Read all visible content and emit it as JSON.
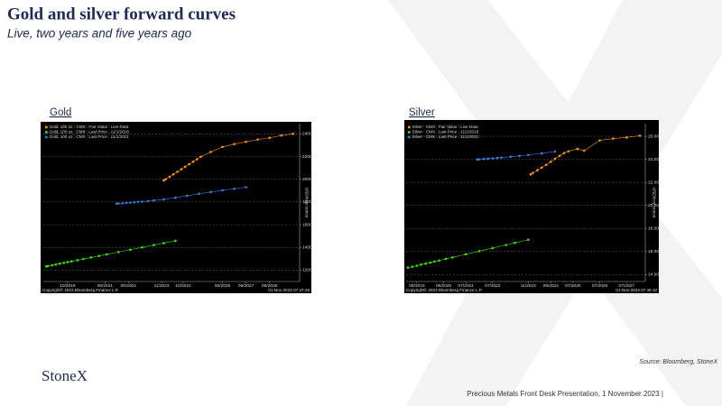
{
  "slide": {
    "title": "Gold and silver forward curves",
    "subtitle": "Live, two years and five years ago",
    "source": "Source: Bloomberg, StoneX",
    "logo": "StoneX",
    "footer": "Precious Metals Front Desk Presentation, 1 November 2023 |"
  },
  "chart_data": [
    {
      "type": "line",
      "title": "Gold",
      "ylabel": "USD/troy ounce",
      "copyright": "Copyright© 2023 Bloomberg Finance L.P.",
      "timestamp": "01-Nov-2023 07:47:29",
      "legend": "upper left",
      "grid": true,
      "xlim": [
        2018.8,
        2029.7
      ],
      "ylim": [
        1100,
        2490
      ],
      "xticks": [
        {
          "value": 2019.83,
          "label": "10/2019"
        },
        {
          "value": 2021.42,
          "label": "06/2021"
        },
        {
          "value": 2022.42,
          "label": "06/2022"
        },
        {
          "value": 2023.83,
          "label": "11/2023"
        },
        {
          "value": 2024.75,
          "label": "10/2024"
        },
        {
          "value": 2026.42,
          "label": "06/2026"
        },
        {
          "value": 2027.42,
          "label": "06/2027"
        },
        {
          "value": 2028.42,
          "label": "06/2028"
        }
      ],
      "yticks": [
        1200,
        1400,
        1600,
        1800,
        2000,
        2200,
        2400
      ],
      "series": [
        {
          "name": "Gold, 100 oz : CMX : Fair Value : Live Data",
          "color": "#f7941d",
          "x": [
            2023.92,
            2024.0,
            2024.17,
            2024.33,
            2024.5,
            2024.67,
            2024.83,
            2025.0,
            2025.17,
            2025.33,
            2025.5,
            2025.92,
            2026.42,
            2026.92,
            2027.42,
            2027.92,
            2028.42,
            2028.92,
            2029.42
          ],
          "values": [
            1990,
            2000,
            2022,
            2044,
            2066,
            2088,
            2110,
            2132,
            2154,
            2176,
            2198,
            2240,
            2285,
            2310,
            2330,
            2350,
            2365,
            2385,
            2400
          ]
        },
        {
          "name": "Gold, 100 oz : CMX : Last Price : 11/1/2018",
          "color": "#39e600",
          "x": [
            2018.92,
            2019.0,
            2019.17,
            2019.33,
            2019.5,
            2019.67,
            2019.83,
            2020.0,
            2020.25,
            2020.5,
            2020.83,
            2021.17,
            2021.5,
            2022.0,
            2022.5,
            2023.0,
            2023.5,
            2023.92,
            2024.42
          ],
          "values": [
            1233,
            1236,
            1243,
            1250,
            1257,
            1264,
            1270,
            1277,
            1287,
            1298,
            1311,
            1325,
            1339,
            1359,
            1380,
            1400,
            1421,
            1438,
            1458
          ]
        },
        {
          "name": "Gold, 100 oz : CMX : Last Price : 11/1/2021",
          "color": "#3b7ddd",
          "x": [
            2021.92,
            2022.0,
            2022.17,
            2022.33,
            2022.5,
            2022.67,
            2022.83,
            2023.0,
            2023.25,
            2023.5,
            2023.92,
            2024.42,
            2024.92,
            2025.42,
            2025.92,
            2026.42,
            2026.92,
            2027.42
          ],
          "values": [
            1785,
            1787,
            1789,
            1792,
            1795,
            1798,
            1801,
            1804,
            1808,
            1813,
            1822,
            1838,
            1855,
            1872,
            1888,
            1903,
            1917,
            1930
          ]
        }
      ]
    },
    {
      "type": "line",
      "title": "Silver",
      "ylabel": "USD/troy ounce",
      "copyright": "Copyright© 2023 Bloomberg Finance L.P.",
      "timestamp": "01-Nov-2023 07:48:10",
      "legend": "upper left",
      "grid": true,
      "xlim": [
        2019.27,
        2028.2
      ],
      "ylim": [
        13.4,
        27.1
      ],
      "xticks": [
        {
          "value": 2019.67,
          "label": "09/2019"
        },
        {
          "value": 2020.67,
          "label": "09/2020"
        },
        {
          "value": 2021.5,
          "label": "07/2021"
        },
        {
          "value": 2022.5,
          "label": "07/2022"
        },
        {
          "value": 2023.83,
          "label": "11/2023"
        },
        {
          "value": 2024.67,
          "label": "09/2024"
        },
        {
          "value": 2025.5,
          "label": "07/2025"
        },
        {
          "value": 2026.5,
          "label": "07/2026"
        },
        {
          "value": 2027.5,
          "label": "07/2027"
        }
      ],
      "yticks": [
        {
          "value": 14,
          "label": "14.00"
        },
        {
          "value": 16,
          "label": "16.00"
        },
        {
          "value": 18,
          "label": "18.00"
        },
        {
          "value": 20,
          "label": "20.00"
        },
        {
          "value": 22,
          "label": "22.00"
        },
        {
          "value": 24,
          "label": "24.00"
        },
        {
          "value": 26,
          "label": "26.00"
        }
      ],
      "series": [
        {
          "name": "Silver : CMX : Fair Value : Live Data",
          "color": "#f7941d",
          "x": [
            2023.92,
            2024.0,
            2024.17,
            2024.33,
            2024.5,
            2024.67,
            2024.83,
            2025.0,
            2025.17,
            2025.33,
            2025.67,
            2025.92,
            2026.5,
            2027.0,
            2027.5,
            2028.0
          ],
          "values": [
            22.7,
            22.82,
            23.05,
            23.28,
            23.52,
            23.78,
            24.05,
            24.3,
            24.55,
            24.7,
            24.9,
            24.75,
            25.65,
            25.8,
            25.9,
            26.05
          ]
        },
        {
          "name": "Silver : CMX : Last Price : 11/1/2018",
          "color": "#39e600",
          "x": [
            2019.33,
            2019.5,
            2019.67,
            2019.83,
            2020.0,
            2020.17,
            2020.33,
            2020.5,
            2020.75,
            2021.0,
            2021.5,
            2022.0,
            2022.5,
            2023.0,
            2023.33,
            2023.83
          ],
          "values": [
            14.6,
            14.68,
            14.77,
            14.86,
            14.95,
            15.04,
            15.13,
            15.22,
            15.36,
            15.49,
            15.76,
            16.03,
            16.3,
            16.57,
            16.75,
            17.02
          ]
        },
        {
          "name": "Silver : CMX : Last Price : 11/1/2021",
          "color": "#3b7ddd",
          "x": [
            2021.92,
            2022.0,
            2022.17,
            2022.33,
            2022.5,
            2022.67,
            2022.83,
            2023.17,
            2023.5,
            2023.83,
            2024.33,
            2024.83
          ],
          "values": [
            23.98,
            24.0,
            24.03,
            24.06,
            24.09,
            24.12,
            24.15,
            24.22,
            24.3,
            24.38,
            24.52,
            24.68
          ]
        }
      ]
    }
  ]
}
